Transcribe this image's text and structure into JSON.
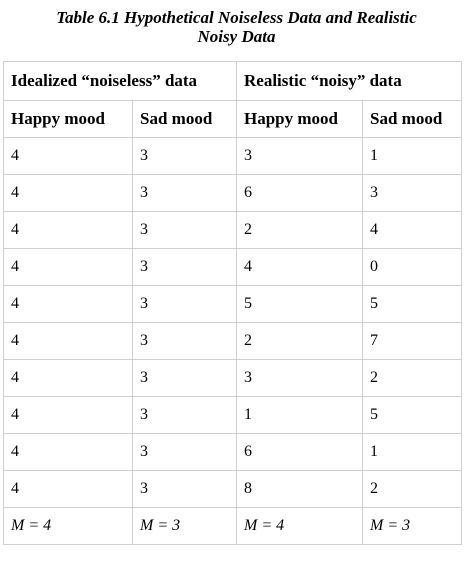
{
  "caption": {
    "line1": "Table 6.1 Hypothetical Noiseless Data and Realistic",
    "line2": "Noisy Data"
  },
  "table": {
    "groups": [
      "Idealized “noiseless” data",
      "Realistic “noisy” data"
    ],
    "columns": [
      "Happy mood",
      "Sad mood",
      "Happy mood",
      "Sad mood"
    ],
    "rows": [
      [
        "4",
        "3",
        "3",
        "1"
      ],
      [
        "4",
        "3",
        "6",
        "3"
      ],
      [
        "4",
        "3",
        "2",
        "4"
      ],
      [
        "4",
        "3",
        "4",
        "0"
      ],
      [
        "4",
        "3",
        "5",
        "5"
      ],
      [
        "4",
        "3",
        "2",
        "7"
      ],
      [
        "4",
        "3",
        "3",
        "2"
      ],
      [
        "4",
        "3",
        "1",
        "5"
      ],
      [
        "4",
        "3",
        "6",
        "1"
      ],
      [
        "4",
        "3",
        "8",
        "2"
      ]
    ],
    "means": [
      "M = 4",
      "M = 3",
      "M = 4",
      "M = 3"
    ]
  }
}
